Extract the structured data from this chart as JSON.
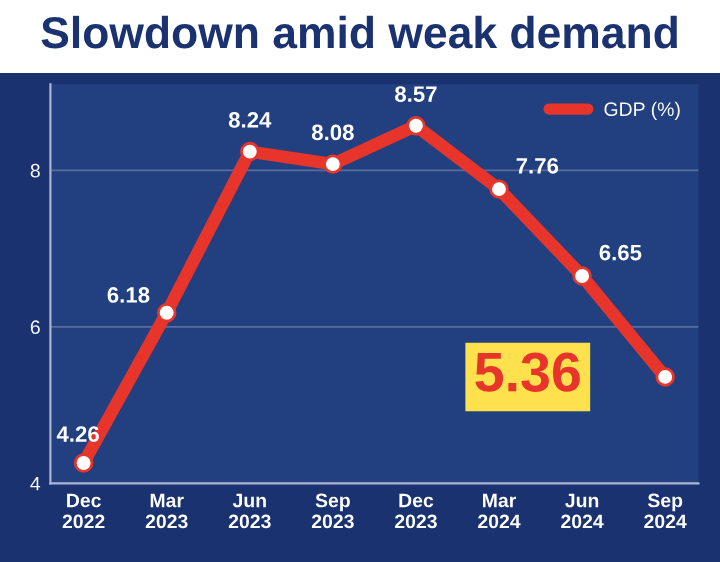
{
  "chart_data": {
    "type": "line",
    "title": "Slowdown amid weak demand",
    "categories": [
      "Dec\n2022",
      "Mar\n2023",
      "Jun\n2023",
      "Sep\n2023",
      "Dec\n2023",
      "Mar\n2024",
      "Jun\n2024",
      "Sep\n2024"
    ],
    "series": [
      {
        "name": "GDP (%)",
        "color": "#e8352b",
        "values": [
          4.26,
          6.18,
          8.24,
          8.08,
          8.57,
          7.76,
          6.65,
          5.36
        ]
      }
    ],
    "ylim": [
      4,
      9.1
    ],
    "yticks": [
      4,
      6,
      8
    ],
    "grid": "y",
    "legend": "top right",
    "marker": "circle",
    "line_style": "solid",
    "data_labels": true
  }
}
